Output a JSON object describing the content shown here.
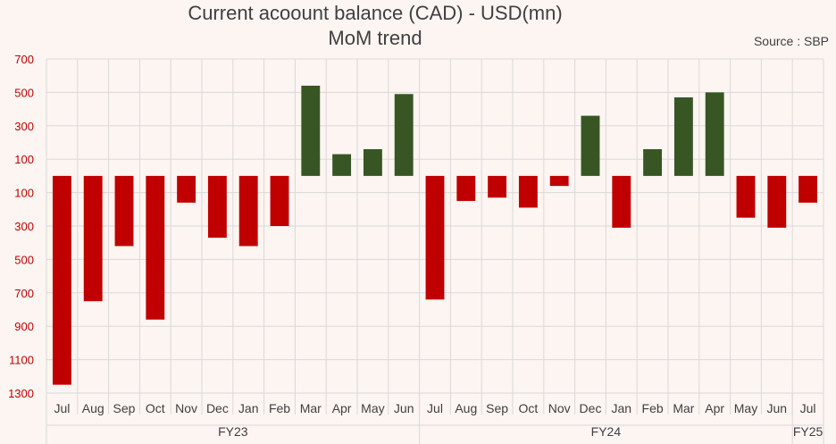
{
  "chart_data": {
    "type": "bar",
    "title": "Current acoount balance (CAD) - USD(mn)",
    "subtitle": "MoM trend",
    "source": "Source : SBP",
    "categories": [
      "Jul",
      "Aug",
      "Sep",
      "Oct",
      "Nov",
      "Dec",
      "Jan",
      "Feb",
      "Mar",
      "Apr",
      "May",
      "Jun",
      "Jul",
      "Aug",
      "Sep",
      "Oct",
      "Nov",
      "Dec",
      "Jan",
      "Feb",
      "Mar",
      "Apr",
      "May",
      "Jun",
      "Jul"
    ],
    "groups": [
      {
        "label": "FY23",
        "count": 12
      },
      {
        "label": "FY24",
        "count": 12
      },
      {
        "label": "FY25",
        "count": 1
      }
    ],
    "values": [
      -1250,
      -750,
      -420,
      -860,
      -160,
      -370,
      -420,
      -300,
      540,
      130,
      160,
      490,
      -740,
      -150,
      -130,
      -190,
      -60,
      360,
      -310,
      160,
      470,
      500,
      -250,
      -310,
      -160
    ],
    "ylim": [
      -1300,
      700
    ],
    "yticks": [
      700,
      500,
      300,
      100,
      -100,
      -300,
      -500,
      -700,
      -900,
      -1100,
      -1300
    ],
    "ytick_labels": [
      "700",
      "500",
      "300",
      "100",
      "100",
      "300",
      "500",
      "700",
      "900",
      "1100",
      "1300"
    ],
    "grid": true,
    "colors": {
      "positive": "#375623",
      "negative": "#c00000",
      "grid": "#d9d9d9",
      "axis_text": "#c00000"
    }
  }
}
